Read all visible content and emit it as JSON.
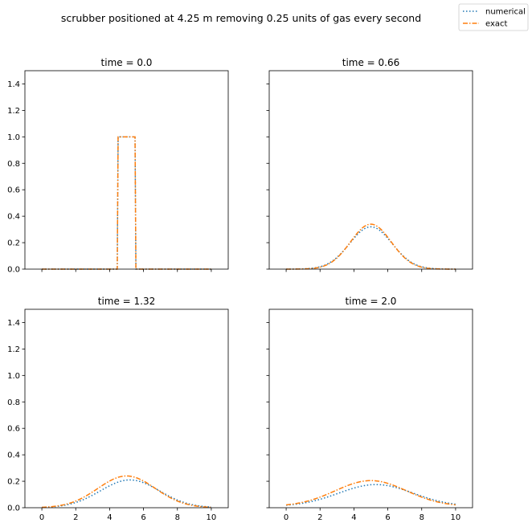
{
  "figure": {
    "suptitle": "scrubber positioned at 4.25 m removing 0.25 units of gas every second",
    "legend": {
      "placement": "top-right",
      "entries": [
        "numerical",
        "exact"
      ]
    }
  },
  "chart_data": [
    {
      "type": "line",
      "title": "time = 0.0",
      "xlim": [
        -1,
        11
      ],
      "ylim": [
        0,
        1.5
      ],
      "xticks": [
        0,
        2,
        4,
        6,
        8,
        10
      ],
      "yticks": [
        0.0,
        0.2,
        0.4,
        0.6,
        0.8,
        1.0,
        1.2,
        1.4
      ],
      "series": [
        {
          "name": "numerical",
          "color": "#1f77b4",
          "style": "dotted",
          "x": [
            0,
            4.45,
            4.5,
            4.55,
            5.0,
            5.45,
            5.5,
            5.55,
            10
          ],
          "y": [
            0,
            0,
            1.0,
            1.0,
            1.0,
            1.0,
            1.0,
            0,
            0
          ]
        },
        {
          "name": "exact",
          "color": "#ff7f0e",
          "style": "dashdot",
          "x": [
            0,
            4.45,
            4.5,
            4.55,
            5.0,
            5.45,
            5.5,
            5.55,
            10
          ],
          "y": [
            0,
            0,
            1.0,
            1.0,
            1.0,
            1.0,
            1.0,
            0,
            0
          ]
        }
      ]
    },
    {
      "type": "line",
      "title": "time = 0.66",
      "xlim": [
        -1,
        11
      ],
      "ylim": [
        0,
        1.5
      ],
      "xticks": [
        0,
        2,
        4,
        6,
        8,
        10
      ],
      "yticks": [
        0.0,
        0.2,
        0.4,
        0.6,
        0.8,
        1.0,
        1.2,
        1.4
      ],
      "series": [
        {
          "name": "numerical",
          "color": "#1f77b4",
          "style": "dotted",
          "peak": 0.32,
          "center": 5.0,
          "sigma": 1.25,
          "base": 0.0
        },
        {
          "name": "exact",
          "color": "#ff7f0e",
          "style": "dashdot",
          "peak": 0.34,
          "center": 5.0,
          "sigma": 1.2,
          "base": 0.0
        }
      ]
    },
    {
      "type": "line",
      "title": "time = 1.32",
      "xlim": [
        -1,
        11
      ],
      "ylim": [
        0,
        1.5
      ],
      "xticks": [
        0,
        2,
        4,
        6,
        8,
        10
      ],
      "yticks": [
        0.0,
        0.2,
        0.4,
        0.6,
        0.8,
        1.0,
        1.2,
        1.4
      ],
      "series": [
        {
          "name": "numerical",
          "color": "#1f77b4",
          "style": "dotted",
          "peak": 0.21,
          "center": 5.2,
          "sigma": 1.75,
          "base": 0.0
        },
        {
          "name": "exact",
          "color": "#ff7f0e",
          "style": "dashdot",
          "peak": 0.24,
          "center": 5.0,
          "sigma": 1.7,
          "base": 0.0
        }
      ]
    },
    {
      "type": "line",
      "title": "time = 2.0",
      "xlim": [
        -1,
        11
      ],
      "ylim": [
        0,
        1.5
      ],
      "xticks": [
        0,
        2,
        4,
        6,
        8,
        10
      ],
      "yticks": [
        0.0,
        0.2,
        0.4,
        0.6,
        0.8,
        1.0,
        1.2,
        1.4
      ],
      "series": [
        {
          "name": "numerical",
          "color": "#1f77b4",
          "style": "dotted",
          "peak": 0.165,
          "center": 5.3,
          "sigma": 2.2,
          "base": 0.01
        },
        {
          "name": "exact",
          "color": "#ff7f0e",
          "style": "dashdot",
          "peak": 0.195,
          "center": 5.0,
          "sigma": 2.1,
          "base": 0.01
        }
      ]
    }
  ]
}
